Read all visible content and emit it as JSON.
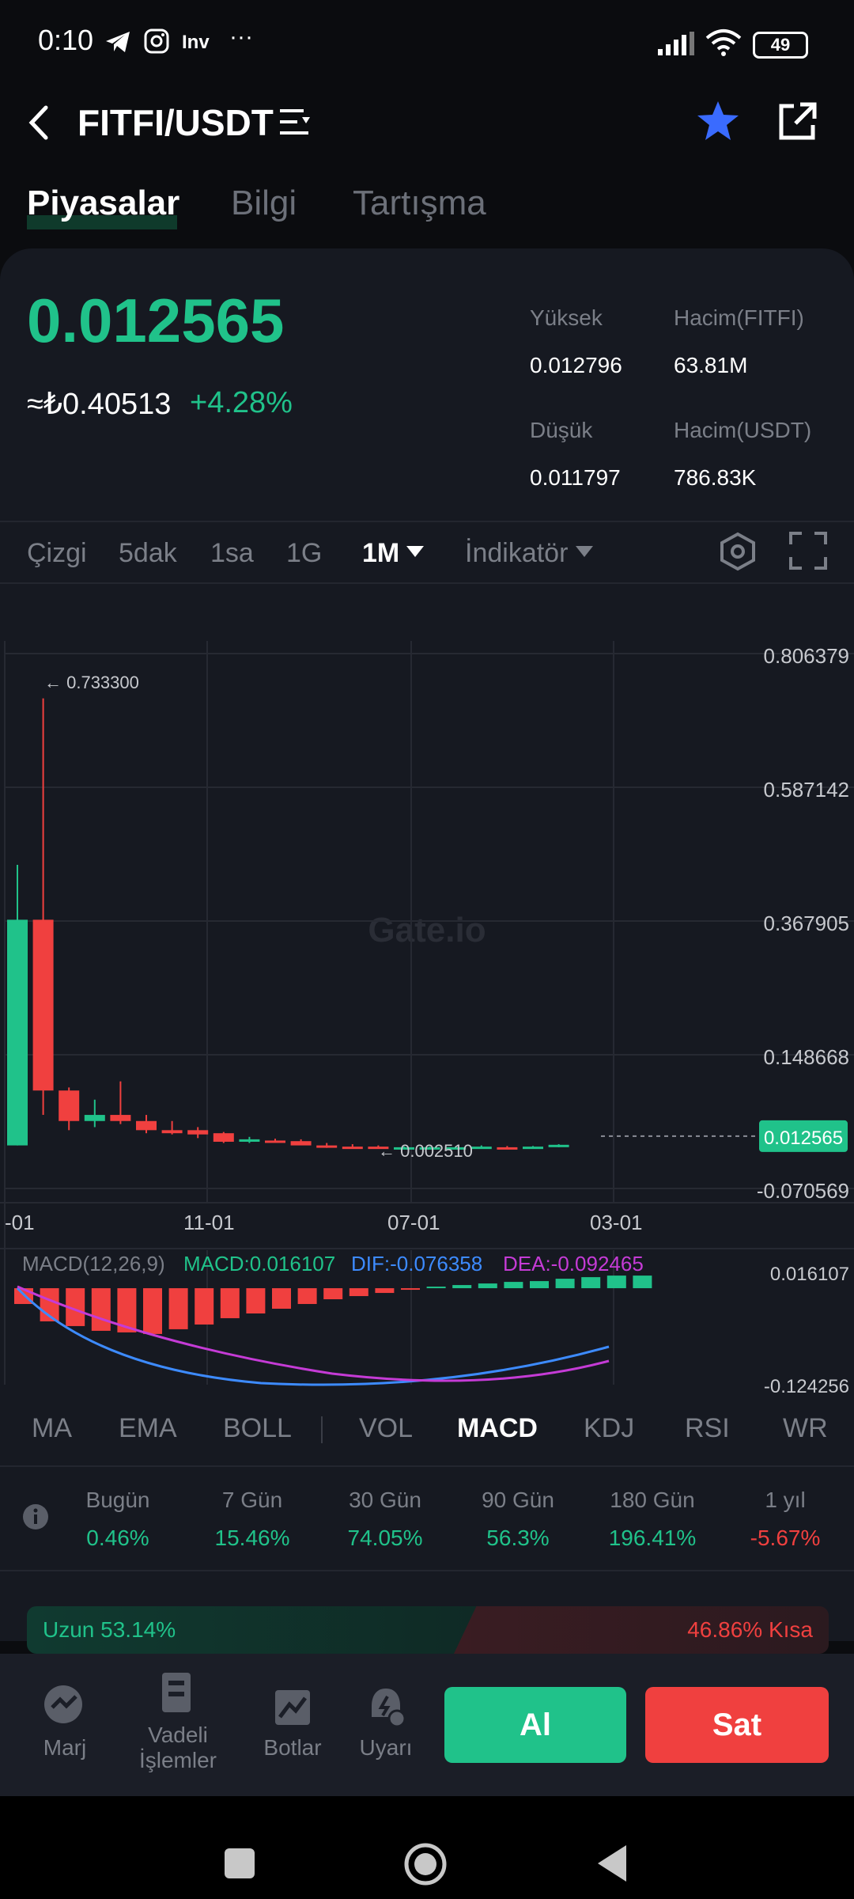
{
  "status": {
    "time": "0:10",
    "inv": "Inv",
    "dots": "···",
    "battery": "49"
  },
  "header": {
    "pair": "FITFI/USDT"
  },
  "tabs": [
    "Piyasalar",
    "Bilgi",
    "Tartışma"
  ],
  "price": {
    "last": "0.012565",
    "fiat": "≈₺0.40513",
    "change": "+4.28%",
    "stats": {
      "high_label": "Yüksek",
      "high": "0.012796",
      "low_label": "Düşük",
      "low": "0.011797",
      "vol_base_label": "Hacim(FITFI)",
      "vol_base": "63.81M",
      "vol_quote_label": "Hacim(USDT)",
      "vol_quote": "786.83K"
    }
  },
  "timeframes": [
    "Çizgi",
    "5dak",
    "1sa",
    "1G",
    "1M",
    "İndikatör"
  ],
  "active_timeframe": "1M",
  "chart": {
    "watermark": "Gate.io",
    "y_ticks": [
      "0.806379",
      "0.587142",
      "0.367905",
      "0.148668",
      "-0.070569"
    ],
    "x_ticks": [
      "-01",
      "11-01",
      "07-01",
      "03-01"
    ],
    "high_marker": "← 0.733300",
    "low_marker": "← 0.002510",
    "current_price": "0.012565",
    "macd_label": "MACD(12,26,9)",
    "macd_value": "MACD:0.016107",
    "dif_value": "DIF:-0.076358",
    "dea_value": "DEA:-0.092465",
    "macd_top": "0.016107",
    "macd_bottom": "-0.124256"
  },
  "chart_data": {
    "type": "candlestick",
    "candles": [
      {
        "o": 0.0,
        "h": 0.46,
        "l": 0.0,
        "c": 0.37,
        "dir": "up"
      },
      {
        "o": 0.37,
        "h": 0.733,
        "l": 0.05,
        "c": 0.09,
        "dir": "down"
      },
      {
        "o": 0.09,
        "h": 0.095,
        "l": 0.025,
        "c": 0.04,
        "dir": "down"
      },
      {
        "o": 0.04,
        "h": 0.075,
        "l": 0.03,
        "c": 0.05,
        "dir": "up"
      },
      {
        "o": 0.05,
        "h": 0.105,
        "l": 0.035,
        "c": 0.04,
        "dir": "down"
      },
      {
        "o": 0.04,
        "h": 0.05,
        "l": 0.02,
        "c": 0.025,
        "dir": "down"
      },
      {
        "o": 0.025,
        "h": 0.04,
        "l": 0.018,
        "c": 0.02,
        "dir": "down"
      },
      {
        "o": 0.025,
        "h": 0.03,
        "l": 0.012,
        "c": 0.018,
        "dir": "down"
      },
      {
        "o": 0.02,
        "h": 0.022,
        "l": 0.004,
        "c": 0.006,
        "dir": "down"
      },
      {
        "o": 0.006,
        "h": 0.014,
        "l": 0.004,
        "c": 0.01,
        "dir": "up"
      },
      {
        "o": 0.008,
        "h": 0.011,
        "l": 0.005,
        "c": 0.007,
        "dir": "down"
      },
      {
        "o": 0.007,
        "h": 0.01,
        "l": 0.003,
        "c": 0.0,
        "dir": "down"
      },
      {
        "o": 0.0,
        "h": 0.004,
        "l": -0.004,
        "c": -0.002,
        "dir": "down"
      },
      {
        "o": -0.002,
        "h": 0.002,
        "l": -0.004,
        "c": -0.003,
        "dir": "down"
      },
      {
        "o": -0.003,
        "h": 0.0,
        "l": -0.004,
        "c": -0.002,
        "dir": "down"
      },
      {
        "o": -0.003,
        "h": -0.002,
        "l": -0.004,
        "c": -0.003,
        "dir": "up"
      },
      {
        "o": -0.003,
        "h": -0.002,
        "l": -0.004,
        "c": -0.003,
        "dir": "up"
      },
      {
        "o": -0.003,
        "h": -0.002,
        "l": -0.004,
        "c": -0.003,
        "dir": "up"
      },
      {
        "o": -0.003,
        "h": 0.0,
        "l": -0.004,
        "c": -0.002,
        "dir": "up"
      },
      {
        "o": -0.003,
        "h": -0.001,
        "l": -0.004,
        "c": -0.003,
        "dir": "down"
      },
      {
        "o": -0.003,
        "h": -0.001,
        "l": -0.004,
        "c": -0.002,
        "dir": "up"
      },
      {
        "o": -0.002,
        "h": 0.002,
        "l": -0.003,
        "c": 0.001,
        "dir": "up"
      }
    ],
    "y_range": [
      -0.070569,
      0.806379
    ],
    "macd": {
      "hist": [
        -0.02,
        -0.042,
        -0.048,
        -0.054,
        -0.056,
        -0.058,
        -0.052,
        -0.046,
        -0.038,
        -0.032,
        -0.026,
        -0.02,
        -0.014,
        -0.01,
        -0.006,
        -0.002,
        0.002,
        0.004,
        0.006,
        0.008,
        0.009,
        0.012,
        0.014,
        0.016,
        0.016
      ],
      "y_range": [
        -0.124256,
        0.016107
      ]
    }
  },
  "indicators": [
    "MA",
    "EMA",
    "BOLL",
    "VOL",
    "MACD",
    "KDJ",
    "RSI",
    "WR"
  ],
  "active_indicator": "MACD",
  "performance": [
    {
      "label": "Bugün",
      "value": "0.46%",
      "color": "#20c28a"
    },
    {
      "label": "7 Gün",
      "value": "15.46%",
      "color": "#20c28a"
    },
    {
      "label": "30 Gün",
      "value": "74.05%",
      "color": "#20c28a"
    },
    {
      "label": "90 Gün",
      "value": "56.3%",
      "color": "#20c28a"
    },
    {
      "label": "180 Gün",
      "value": "196.41%",
      "color": "#20c28a"
    },
    {
      "label": "1 yıl",
      "value": "-5.67%",
      "color": "#f0403f"
    }
  ],
  "long_short": {
    "long": "Uzun 53.14%",
    "short": "46.86% Kısa"
  },
  "bottom_nav": {
    "margin": "Marj",
    "futures_1": "Vadeli",
    "futures_2": "İşlemler",
    "bots": "Botlar",
    "alerts": "Uyarı",
    "buy": "Al",
    "sell": "Sat"
  },
  "colors": {
    "up": "#20c28a",
    "down": "#f0403f",
    "accent": "#3a6bff"
  }
}
